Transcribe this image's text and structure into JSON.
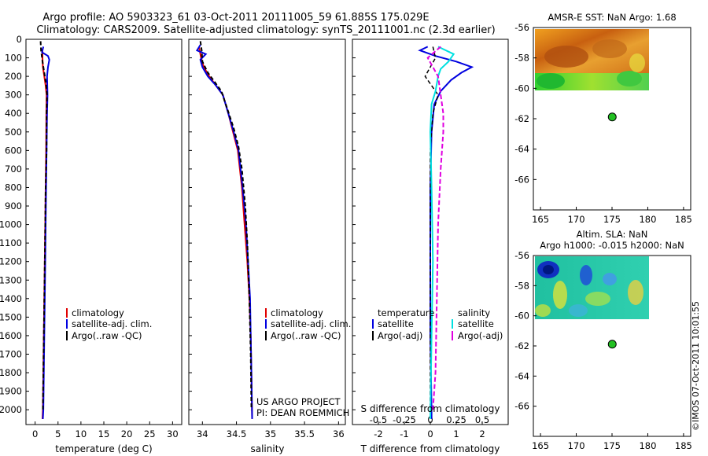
{
  "header": {
    "line1": "Argo profile: AO 5903323_61 03-Oct-2011 20111005_59 61.885S 175.029E",
    "line2": "Climatology: CARS2009. Satellite-adjusted climatology: synTS_20111001.nc (2.3d earlier)"
  },
  "colors": {
    "climatology": "#e00000",
    "satellite": "#0000e0",
    "argo": "#000000",
    "sal_satellite": "#00e0e0",
    "sal_argo": "#e000e0",
    "marker": "#22c022"
  },
  "chart_data": [
    {
      "type": "line",
      "id": "temperature",
      "xlabel": "temperature (deg C)",
      "ylabel": "",
      "xlim": [
        -2,
        32
      ],
      "ylim": [
        2080,
        0
      ],
      "xticks": [
        0,
        5,
        10,
        15,
        20,
        25,
        30
      ],
      "yticks": [
        0,
        100,
        200,
        300,
        400,
        500,
        600,
        700,
        800,
        900,
        1000,
        1100,
        1200,
        1300,
        1400,
        1500,
        1600,
        1700,
        1800,
        1900,
        2000
      ],
      "legend": [
        "climatology",
        "satellite-adj. clim.",
        "Argo(..raw -QC)"
      ],
      "series": [
        {
          "name": "climatology",
          "x": [
            1.6,
            1.6,
            1.7,
            2.0,
            2.3,
            2.5,
            2.45,
            2.4,
            2.3,
            2.2,
            2.1,
            2.0,
            1.9,
            1.8,
            1.7,
            1.6
          ],
          "y": [
            50,
            100,
            150,
            200,
            250,
            300,
            400,
            600,
            800,
            1000,
            1200,
            1400,
            1600,
            1800,
            2000,
            2050
          ]
        },
        {
          "name": "satellite-adj. clim.",
          "x": [
            1.8,
            1.5,
            2.8,
            3.1,
            2.8,
            2.6,
            2.7,
            2.6,
            2.5,
            2.4,
            2.3,
            2.2,
            2.1,
            2.0,
            1.9,
            1.8,
            1.7
          ],
          "y": [
            40,
            70,
            90,
            110,
            150,
            200,
            300,
            400,
            600,
            800,
            1000,
            1200,
            1400,
            1600,
            1800,
            2000,
            2050
          ]
        },
        {
          "name": "Argo(..raw -QC)",
          "x": [
            1.2,
            1.3,
            1.6,
            2.0,
            2.4,
            2.6,
            2.5,
            2.5,
            2.3,
            2.2,
            2.1,
            2.0,
            1.9,
            1.8,
            1.7
          ],
          "y": [
            10,
            60,
            120,
            180,
            240,
            300,
            400,
            600,
            800,
            1000,
            1200,
            1400,
            1600,
            1800,
            2000
          ]
        }
      ]
    },
    {
      "type": "line",
      "id": "salinity",
      "xlabel": "salinity",
      "xlim": [
        33.8,
        36.1
      ],
      "ylim": [
        2080,
        0
      ],
      "xticks": [
        34,
        34.5,
        35,
        35.5,
        36
      ],
      "xticklabels": [
        "34",
        "34.5",
        "35",
        "35.5",
        "36"
      ],
      "legend": [
        "climatology",
        "satellite-adj. clim.",
        "Argo(..raw -QC)"
      ],
      "annotation": [
        "US ARGO PROJECT",
        "PI: DEAN ROEMMICH"
      ],
      "series": [
        {
          "name": "climatology",
          "x": [
            33.95,
            33.98,
            34.02,
            34.1,
            34.2,
            34.3,
            34.38,
            34.45,
            34.52,
            34.58,
            34.62,
            34.66,
            34.69,
            34.71,
            34.72,
            34.73
          ],
          "y": [
            40,
            100,
            150,
            200,
            250,
            300,
            400,
            500,
            600,
            800,
            1000,
            1200,
            1400,
            1600,
            1800,
            2050
          ]
        },
        {
          "name": "satellite-adj. clim.",
          "x": [
            33.97,
            33.92,
            34.05,
            33.97,
            34.0,
            34.08,
            34.2,
            34.3,
            34.38,
            34.46,
            34.53,
            34.59,
            34.64,
            34.67,
            34.7,
            34.71,
            34.72,
            34.73
          ],
          "y": [
            30,
            60,
            80,
            110,
            150,
            200,
            250,
            300,
            400,
            500,
            600,
            800,
            1000,
            1200,
            1400,
            1600,
            1800,
            2050
          ]
        },
        {
          "name": "Argo(..raw -QC)",
          "x": [
            33.97,
            33.99,
            34.0,
            34.08,
            34.18,
            34.28,
            34.37,
            34.46,
            34.53,
            34.58,
            34.63,
            34.66,
            34.69,
            34.71,
            34.72
          ],
          "y": [
            10,
            60,
            120,
            180,
            230,
            280,
            380,
            480,
            580,
            700,
            900,
            1100,
            1400,
            1700,
            2000
          ]
        }
      ]
    },
    {
      "type": "line",
      "id": "difference",
      "xlabel": "T difference from climatology",
      "xlabel_top": "S difference from climatology",
      "xlim": [
        -3,
        3
      ],
      "ylim": [
        2080,
        0
      ],
      "xticks": [
        -2,
        -1,
        0,
        1,
        2
      ],
      "xticks_top": [
        "-0.5",
        "-0.25",
        "0",
        "0.25",
        "0.5"
      ],
      "legend_temperature": {
        "title": "temperature",
        "items": [
          "satellite",
          "Argo(-adj)"
        ]
      },
      "legend_salinity": {
        "title": "salinity",
        "items": [
          "satellite",
          "Argo(-adj)"
        ]
      },
      "series": [
        {
          "name": "satellite",
          "x": [
            -0.1,
            -0.4,
            0.2,
            1.0,
            1.6,
            1.2,
            0.8,
            0.4,
            0.15,
            0.05,
            0,
            0,
            0,
            0.05,
            0.05
          ],
          "y": [
            40,
            60,
            90,
            120,
            150,
            180,
            220,
            280,
            350,
            500,
            800,
            1200,
            1600,
            2000,
            2050
          ]
        },
        {
          "name": "Argo(-adj)",
          "x": [
            0.1,
            0.2,
            -0.2,
            0.3,
            0.1,
            0,
            0,
            0,
            0,
            0
          ],
          "y": [
            40,
            100,
            200,
            300,
            400,
            600,
            1000,
            1400,
            1800,
            2000
          ]
        },
        {
          "name": "salinity satellite",
          "x": [
            0.3,
            0.9,
            0.7,
            0.4,
            0.3,
            0.2,
            0.05,
            0,
            0.05,
            0.1,
            0.05,
            0
          ],
          "y": [
            40,
            80,
            120,
            160,
            200,
            280,
            350,
            500,
            800,
            1200,
            1600,
            2050
          ]
        },
        {
          "name": "salinity Argo(-adj)",
          "x": [
            0.4,
            -0.1,
            0.3,
            0.4,
            0.5,
            0.5,
            0.4,
            0.3,
            0.25,
            0.2,
            0.1
          ],
          "y": [
            40,
            100,
            200,
            300,
            400,
            500,
            700,
            1000,
            1400,
            1800,
            2000
          ]
        }
      ]
    },
    {
      "type": "heatmap",
      "id": "sst-map",
      "title": "AMSR-E SST: NaN Argo: 1.68",
      "xlim": [
        164,
        186
      ],
      "ylim": [
        -68,
        -56
      ],
      "xticks": [
        165,
        170,
        175,
        180,
        185
      ],
      "yticks": [
        -56,
        -58,
        -60,
        -62,
        -64,
        -66
      ],
      "float_position": {
        "lon": 175.029,
        "lat": -61.885
      }
    },
    {
      "type": "heatmap",
      "id": "sla-map",
      "title": "Altim. SLA: NaN",
      "subtitle": "Argo h1000: -0.015 h2000: NaN",
      "xlim": [
        164,
        186
      ],
      "ylim": [
        -68,
        -56
      ],
      "xticks": [
        165,
        170,
        175,
        180,
        185
      ],
      "yticks": [
        -56,
        -58,
        -60,
        -62,
        -64,
        -66
      ],
      "float_position": {
        "lon": 175.029,
        "lat": -61.885
      }
    }
  ],
  "watermark": "©IMOS 07-Oct-2011 10:01:55"
}
